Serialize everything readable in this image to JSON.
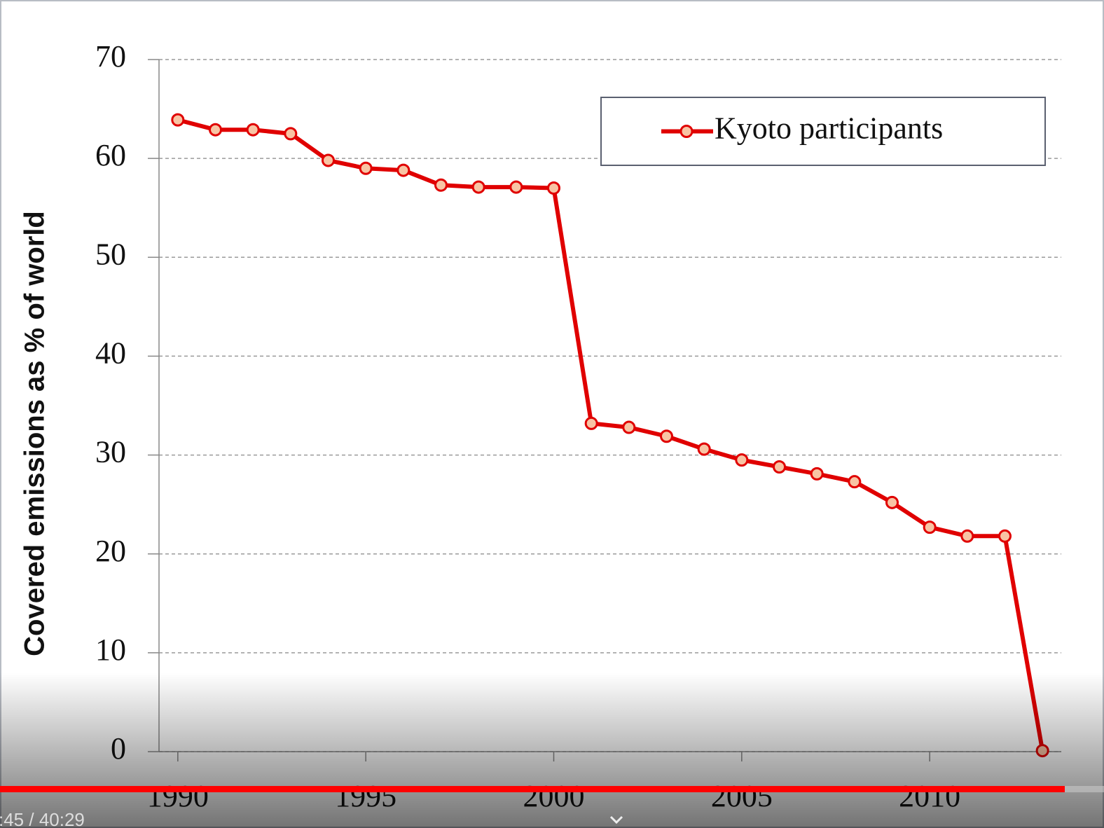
{
  "chart_data": {
    "type": "line",
    "y_label": "Covered emissions as % of world",
    "x": [
      1990,
      1991,
      1992,
      1993,
      1994,
      1995,
      1996,
      1997,
      1998,
      1999,
      2000,
      2001,
      2002,
      2003,
      2004,
      2005,
      2006,
      2007,
      2008,
      2009,
      2010,
      2011,
      2012,
      2013
    ],
    "series": [
      {
        "name": "Kyoto participants",
        "color": "#e00000",
        "marker_fill": "#f8c4a4",
        "values": [
          63.9,
          62.9,
          62.9,
          62.5,
          59.8,
          59.0,
          58.8,
          57.3,
          57.1,
          57.1,
          57.0,
          33.2,
          32.8,
          31.9,
          30.6,
          29.5,
          28.8,
          28.1,
          27.3,
          25.2,
          22.7,
          21.8,
          21.8,
          0.1
        ]
      }
    ],
    "xlim": [
      1989.5,
      2013.5
    ],
    "xticks": [
      1990,
      1995,
      2000,
      2005,
      2010
    ],
    "ylim": [
      0,
      70
    ],
    "yticks": [
      0,
      10,
      20,
      30,
      40,
      50,
      60,
      70
    ],
    "grid": true,
    "legend": "top-right"
  },
  "player": {
    "time": ":45 / 40:29"
  }
}
